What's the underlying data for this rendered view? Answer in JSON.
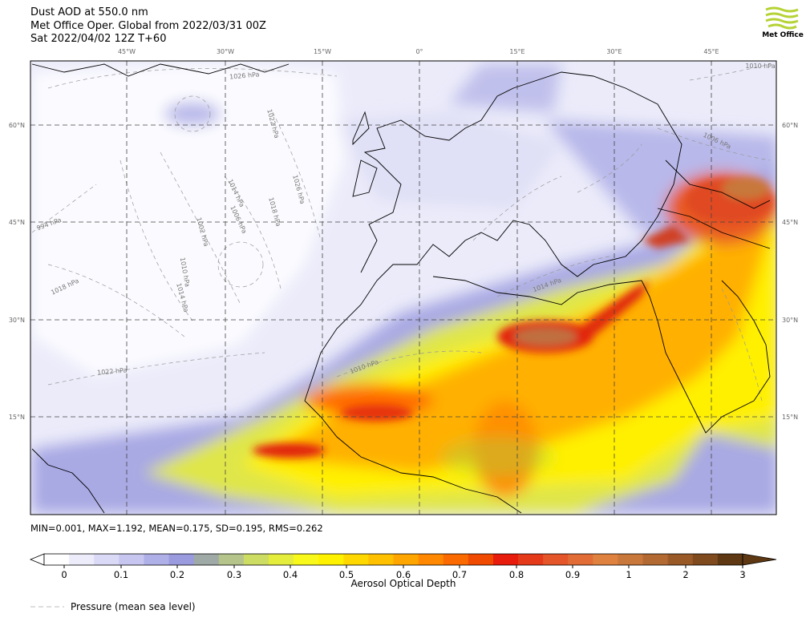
{
  "header": {
    "title": "Dust AOD at 550.0 nm",
    "subtitle": "Met Office Oper. Global from 2022/03/31 00Z",
    "valid_time": "Sat 2022/04/02 12Z T+60",
    "logo": "Met Office"
  },
  "map": {
    "lon_labels": [
      "45°W",
      "30°W",
      "15°W",
      "0°",
      "15°E",
      "30°E",
      "45°E"
    ],
    "lat_labels": [
      "60°N",
      "45°N",
      "30°N",
      "15°N"
    ],
    "isobar_labels": [
      "1026 hPa",
      "1022 hPa",
      "1014 hPa",
      "1006 hPa",
      "1018 hPa",
      "1026 hPa",
      "1002 hPa",
      "1010 hPa",
      "1014 hPa",
      "1018 hPa",
      "1022 hPa",
      "1010 hPa",
      "1014 hPa",
      "1006 hPa",
      "994 hPa",
      "1010 hPa"
    ],
    "stats": "MIN=0.001, MAX=1.192, MEAN=0.175, SD=0.195, RMS=0.262"
  },
  "colorbar": {
    "ticks": [
      0,
      0.1,
      0.2,
      0.3,
      0.4,
      0.5,
      0.6,
      0.7,
      0.8,
      0.9,
      1,
      2,
      3
    ],
    "label": "Aerosol Optical Depth",
    "colors": [
      "#ffffff",
      "#ececfb",
      "#dadaf6",
      "#c6c6f0",
      "#b0b0e8",
      "#9a9ade",
      "#9fa9a6",
      "#b4c48a",
      "#cddc63",
      "#e4ec3c",
      "#f8f81a",
      "#fff200",
      "#ffd800",
      "#ffc000",
      "#ffa500",
      "#ff8800",
      "#fa6a00",
      "#f04a00",
      "#e81c0c",
      "#e53a1a",
      "#e4552a",
      "#e26c36",
      "#df8240",
      "#c8783a",
      "#b26a32",
      "#9a5a28",
      "#7e4a1e",
      "#5e3812"
    ]
  },
  "legend": {
    "label": "Pressure (mean sea level)"
  }
}
